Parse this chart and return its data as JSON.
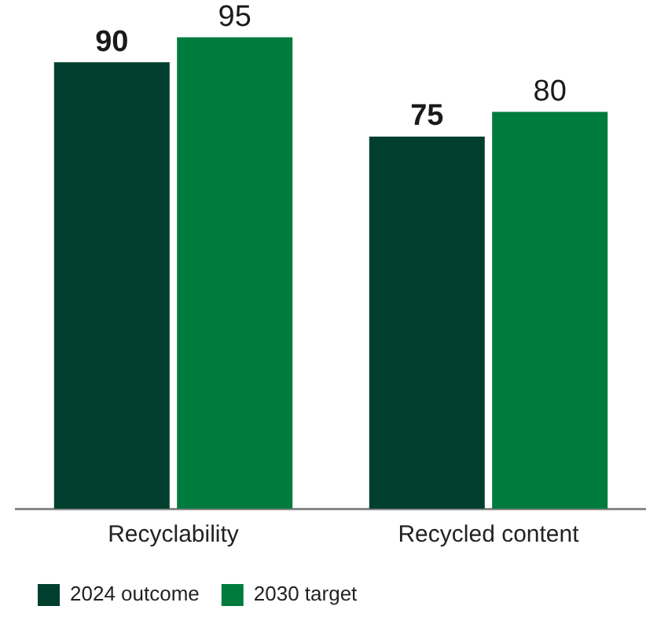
{
  "chart_data": {
    "type": "bar",
    "categories": [
      "Recyclability",
      "Recycled content"
    ],
    "series": [
      {
        "name": "2024 outcome",
        "color": "#003f2d",
        "values": [
          90,
          75
        ]
      },
      {
        "name": "2030 target",
        "color": "#007b3e",
        "values": [
          95,
          80
        ]
      }
    ],
    "data_labels": true,
    "grid": false,
    "legend": "bottom left"
  }
}
